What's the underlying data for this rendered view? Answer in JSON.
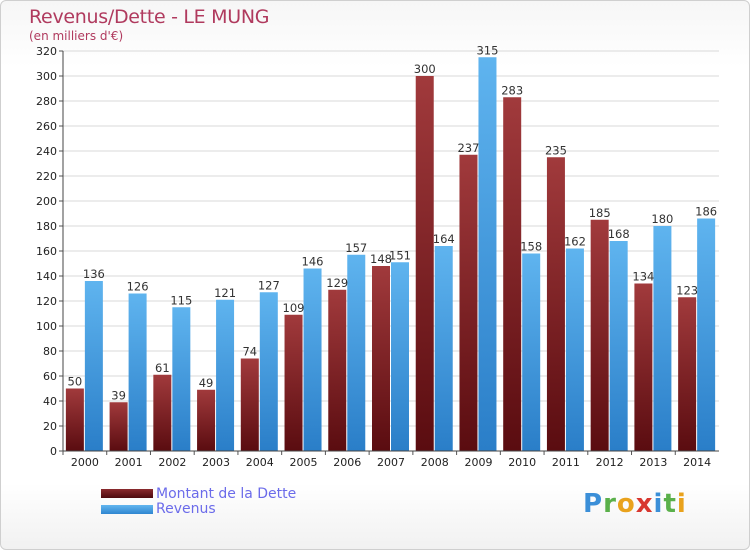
{
  "title": "Revenus/Dette - LE MUNG",
  "subtitle": "(en milliers d'€)",
  "colors": {
    "dette": "#6b1f22",
    "revenus": "#3d9de0",
    "title": "#b03a5e"
  },
  "chart_data": {
    "type": "bar",
    "categories": [
      "2000",
      "2001",
      "2002",
      "2003",
      "2004",
      "2005",
      "2006",
      "2007",
      "2008",
      "2009",
      "2010",
      "2011",
      "2012",
      "2013",
      "2014"
    ],
    "series": [
      {
        "name": "Montant de la Dette",
        "values": [
          50,
          39,
          61,
          49,
          74,
          109,
          129,
          148,
          300,
          237,
          283,
          235,
          185,
          134,
          123
        ]
      },
      {
        "name": "Revenus",
        "values": [
          136,
          126,
          115,
          121,
          127,
          146,
          157,
          151,
          164,
          315,
          158,
          162,
          168,
          180,
          186
        ]
      }
    ],
    "ylim": [
      0,
      320
    ],
    "yticks": [
      0,
      20,
      40,
      60,
      80,
      100,
      120,
      140,
      160,
      180,
      200,
      220,
      240,
      260,
      280,
      300,
      320
    ],
    "grid": true,
    "legend_position": "bottom-left"
  },
  "legend": {
    "dette": "Montant de la Dette",
    "revenus": "Revenus"
  },
  "logo": {
    "letters": [
      "P",
      "r",
      "o",
      "x",
      "i",
      "t",
      "i"
    ]
  }
}
